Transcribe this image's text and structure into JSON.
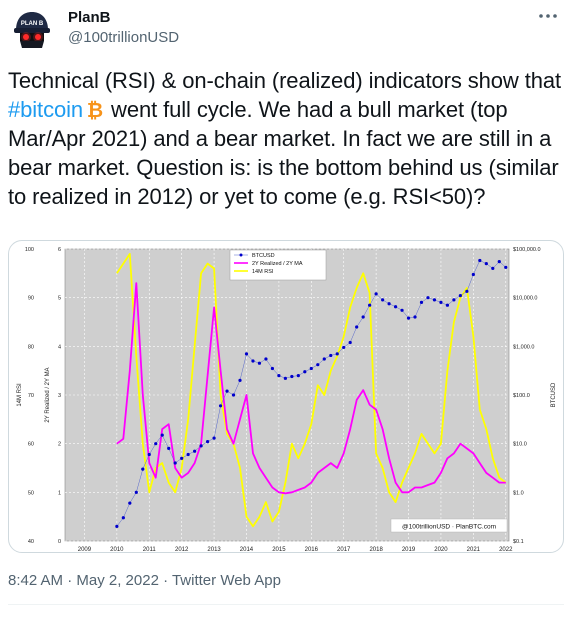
{
  "author": {
    "name": "PlanB",
    "handle": "@100trillionUSD"
  },
  "tweet": {
    "text_before": "Technical (RSI) & on-chain (realized) indicators show that ",
    "hashtag": "#bitcoin",
    "text_after": " went full cycle. We had a bull market (top Mar/Apr 2021) and a bear market. In fact we are still in a bear market. Question is: is the bottom behind us (similar to realized in 2012) or yet to come (e.g. RSI<50)?"
  },
  "meta": {
    "timestamp": "8:42 AM · May 2, 2022 · Twitter Web App"
  },
  "icons": {
    "more": "more-dots-icon",
    "bitcoin": "bitcoin-emoji-icon",
    "avatar": "planb-avatar-icon"
  },
  "colors": {
    "hashtag": "#1d9bf0",
    "btc": "#0000cc",
    "realized": "#ff00ff",
    "rsi": "#ffff00",
    "plot_bg": "#cfcfcf"
  },
  "chart_data": {
    "type": "line",
    "title": "",
    "xlabel": "",
    "ylabel_left_outer": "14M RSI",
    "ylabel_left_inner": "2Y Realized / 2Y MA",
    "ylabel_right": "BTCUSD",
    "watermark": "@100trillionUSD · PlanBTC.com",
    "x_ticks": [
      "2009",
      "2010",
      "2011",
      "2012",
      "2013",
      "2014",
      "2015",
      "2016",
      "2017",
      "2018",
      "2019",
      "2020",
      "2021",
      "2022"
    ],
    "xlim": [
      2008.4,
      2022.1
    ],
    "rsi_axis": {
      "ticks": [
        "40",
        "50",
        "60",
        "70",
        "80",
        "90",
        "100"
      ],
      "ylim": [
        40,
        100
      ]
    },
    "realized_axis": {
      "ticks": [
        "0",
        "1",
        "2",
        "3",
        "4",
        "5",
        "6"
      ],
      "ylim": [
        0,
        6
      ]
    },
    "btc_axis": {
      "ticks": [
        "$0.1",
        "$1.0",
        "$10.0",
        "$100.0",
        "$1,000.0",
        "$10,000.0",
        "$100,000.0"
      ],
      "scale": "log",
      "ylim": [
        0.1,
        100000
      ]
    },
    "legend": {
      "placement": "top-center",
      "entries": [
        "BTCUSD",
        "2Y Realized / 2Y MA",
        "14M RSI"
      ]
    },
    "series": [
      {
        "name": "BTCUSD",
        "axis": "btc",
        "style": "dots",
        "x": [
          2010.0,
          2010.2,
          2010.4,
          2010.6,
          2010.8,
          2011.0,
          2011.2,
          2011.4,
          2011.6,
          2011.8,
          2012.0,
          2012.2,
          2012.4,
          2012.6,
          2012.8,
          2013.0,
          2013.2,
          2013.4,
          2013.6,
          2013.8,
          2014.0,
          2014.2,
          2014.4,
          2014.6,
          2014.8,
          2015.0,
          2015.2,
          2015.4,
          2015.6,
          2015.8,
          2016.0,
          2016.2,
          2016.4,
          2016.6,
          2016.8,
          2017.0,
          2017.2,
          2017.4,
          2017.6,
          2017.8,
          2018.0,
          2018.2,
          2018.4,
          2018.6,
          2018.8,
          2019.0,
          2019.2,
          2019.4,
          2019.6,
          2019.8,
          2020.0,
          2020.2,
          2020.4,
          2020.6,
          2020.8,
          2021.0,
          2021.2,
          2021.4,
          2021.6,
          2021.8,
          2022.0
        ],
        "y": [
          0.2,
          0.3,
          0.6,
          1.0,
          3,
          6,
          10,
          15,
          8,
          4,
          5,
          6,
          7,
          9,
          11,
          13,
          60,
          120,
          100,
          200,
          700,
          500,
          450,
          550,
          350,
          250,
          220,
          240,
          250,
          300,
          350,
          420,
          550,
          650,
          700,
          950,
          1200,
          2500,
          4000,
          7000,
          12000,
          9000,
          7500,
          6500,
          5500,
          3800,
          4000,
          8000,
          10000,
          9000,
          8000,
          7000,
          9000,
          11000,
          13500,
          30000,
          58000,
          50000,
          40000,
          55000,
          42000
        ]
      },
      {
        "name": "2Y Realized / 2Y MA",
        "axis": "realized",
        "style": "line",
        "x": [
          2010.0,
          2010.2,
          2010.4,
          2010.6,
          2010.8,
          2011.0,
          2011.2,
          2011.4,
          2011.6,
          2011.8,
          2012.0,
          2012.2,
          2012.4,
          2012.6,
          2012.8,
          2013.0,
          2013.2,
          2013.4,
          2013.6,
          2013.8,
          2014.0,
          2014.2,
          2014.4,
          2014.6,
          2014.8,
          2015.0,
          2015.2,
          2015.4,
          2015.6,
          2015.8,
          2016.0,
          2016.2,
          2016.4,
          2016.6,
          2016.8,
          2017.0,
          2017.2,
          2017.4,
          2017.6,
          2017.8,
          2018.0,
          2018.2,
          2018.4,
          2018.6,
          2018.8,
          2019.0,
          2019.2,
          2019.4,
          2019.6,
          2019.8,
          2020.0,
          2020.2,
          2020.4,
          2020.6,
          2020.8,
          2021.0,
          2021.2,
          2021.4,
          2021.6,
          2021.8,
          2022.0
        ],
        "y": [
          2.0,
          2.1,
          3.5,
          5.3,
          3.0,
          1.6,
          1.3,
          2.3,
          2.4,
          1.5,
          1.3,
          1.4,
          1.6,
          2.0,
          3.4,
          4.8,
          3.5,
          2.3,
          2.0,
          2.5,
          3.0,
          1.8,
          1.5,
          1.3,
          1.1,
          1.0,
          0.98,
          1.0,
          1.05,
          1.1,
          1.2,
          1.4,
          1.5,
          1.6,
          1.5,
          1.8,
          2.3,
          2.9,
          3.1,
          2.8,
          2.7,
          2.3,
          1.7,
          1.2,
          1.0,
          1.0,
          1.1,
          1.1,
          1.15,
          1.2,
          1.4,
          1.7,
          1.8,
          2.0,
          1.9,
          1.8,
          1.6,
          1.4,
          1.3,
          1.2,
          1.2
        ]
      },
      {
        "name": "14M RSI",
        "axis": "rsi",
        "style": "line",
        "x": [
          2010.0,
          2010.2,
          2010.4,
          2010.6,
          2010.8,
          2011.0,
          2011.2,
          2011.4,
          2011.6,
          2011.8,
          2012.0,
          2012.2,
          2012.4,
          2012.6,
          2012.8,
          2013.0,
          2013.2,
          2013.4,
          2013.6,
          2013.8,
          2014.0,
          2014.2,
          2014.4,
          2014.6,
          2014.8,
          2015.0,
          2015.2,
          2015.4,
          2015.6,
          2015.8,
          2016.0,
          2016.2,
          2016.4,
          2016.6,
          2016.8,
          2017.0,
          2017.2,
          2017.4,
          2017.6,
          2017.8,
          2018.0,
          2018.2,
          2018.4,
          2018.6,
          2018.8,
          2019.0,
          2019.2,
          2019.4,
          2019.6,
          2019.8,
          2020.0,
          2020.2,
          2020.4,
          2020.6,
          2020.8,
          2021.0,
          2021.2,
          2021.4,
          2021.6,
          2021.8,
          2022.0
        ],
        "y": [
          95,
          97,
          99,
          78,
          60,
          50,
          55,
          56,
          52,
          50,
          55,
          65,
          80,
          95,
          97,
          96,
          70,
          62,
          60,
          55,
          45,
          43,
          45,
          48,
          44,
          46,
          52,
          60,
          57,
          60,
          64,
          72,
          70,
          75,
          78,
          82,
          88,
          92,
          95,
          91,
          58,
          55,
          50,
          48,
          52,
          55,
          58,
          62,
          60,
          58,
          60,
          75,
          85,
          90,
          92,
          82,
          67,
          63,
          57,
          53,
          52
        ]
      }
    ]
  }
}
